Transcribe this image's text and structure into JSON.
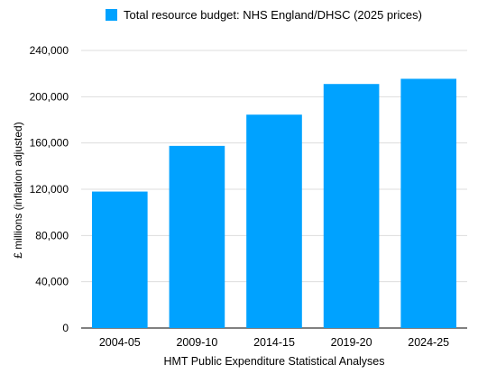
{
  "chart_data": {
    "type": "bar",
    "categories": [
      "2004-05",
      "2009-10",
      "2014-15",
      "2019-20",
      "2024-25"
    ],
    "series": [
      {
        "name": "Total resource budget: NHS England/DHSC (2025 prices)",
        "values": [
          118000,
          157500,
          184500,
          211000,
          215500
        ]
      }
    ],
    "xlabel": "HMT Public Expenditure Statistical Analyses",
    "ylabel": "£ millions (inflation adjusted)",
    "ylim": [
      0,
      240000
    ],
    "yticks": [
      0,
      40000,
      80000,
      120000,
      160000,
      200000,
      240000
    ],
    "ytick_labels": [
      "0",
      "40,000",
      "80,000",
      "120,000",
      "160,000",
      "200,000",
      "240,000"
    ],
    "grid": true,
    "legend_position": "top",
    "colors": {
      "bar": "#00a2ff",
      "grid": "#dddddd",
      "axis": "#000000",
      "text": "#000000"
    }
  }
}
